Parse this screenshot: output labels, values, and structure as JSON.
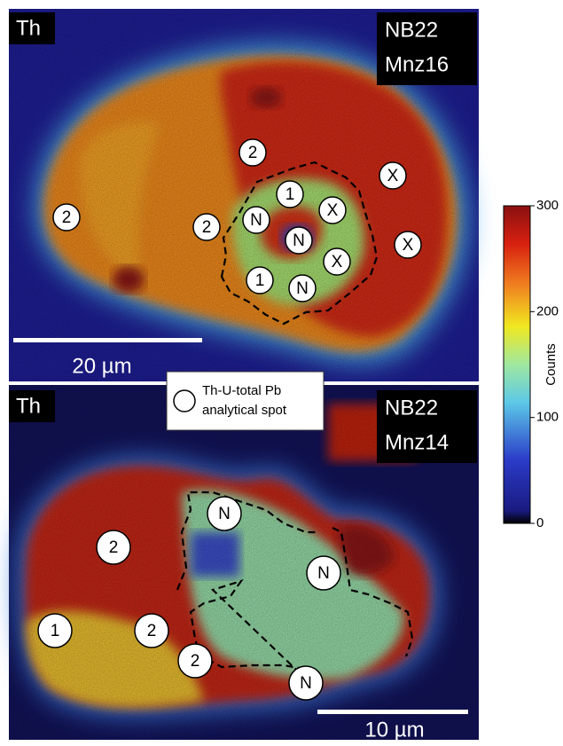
{
  "panels": [
    {
      "element": "Th",
      "sample": "NB22",
      "grain": "Mnz16",
      "scale_bar": "20 µm",
      "spots": [
        "2",
        "2",
        "1",
        "2",
        "N",
        "X",
        "N",
        "X",
        "X",
        "X",
        "1",
        "N"
      ]
    },
    {
      "element": "Th",
      "sample": "NB22",
      "grain": "Mnz14",
      "scale_bar": "10 µm",
      "spots": [
        "N",
        "N",
        "2",
        "2",
        "2",
        "N",
        "1"
      ]
    }
  ],
  "legend": [
    "Th-U-total Pb",
    "analytical spot"
  ],
  "colorbar": {
    "label": "Counts",
    "range": [
      0,
      300
    ],
    "ticks": [
      0,
      100,
      200,
      300
    ]
  }
}
